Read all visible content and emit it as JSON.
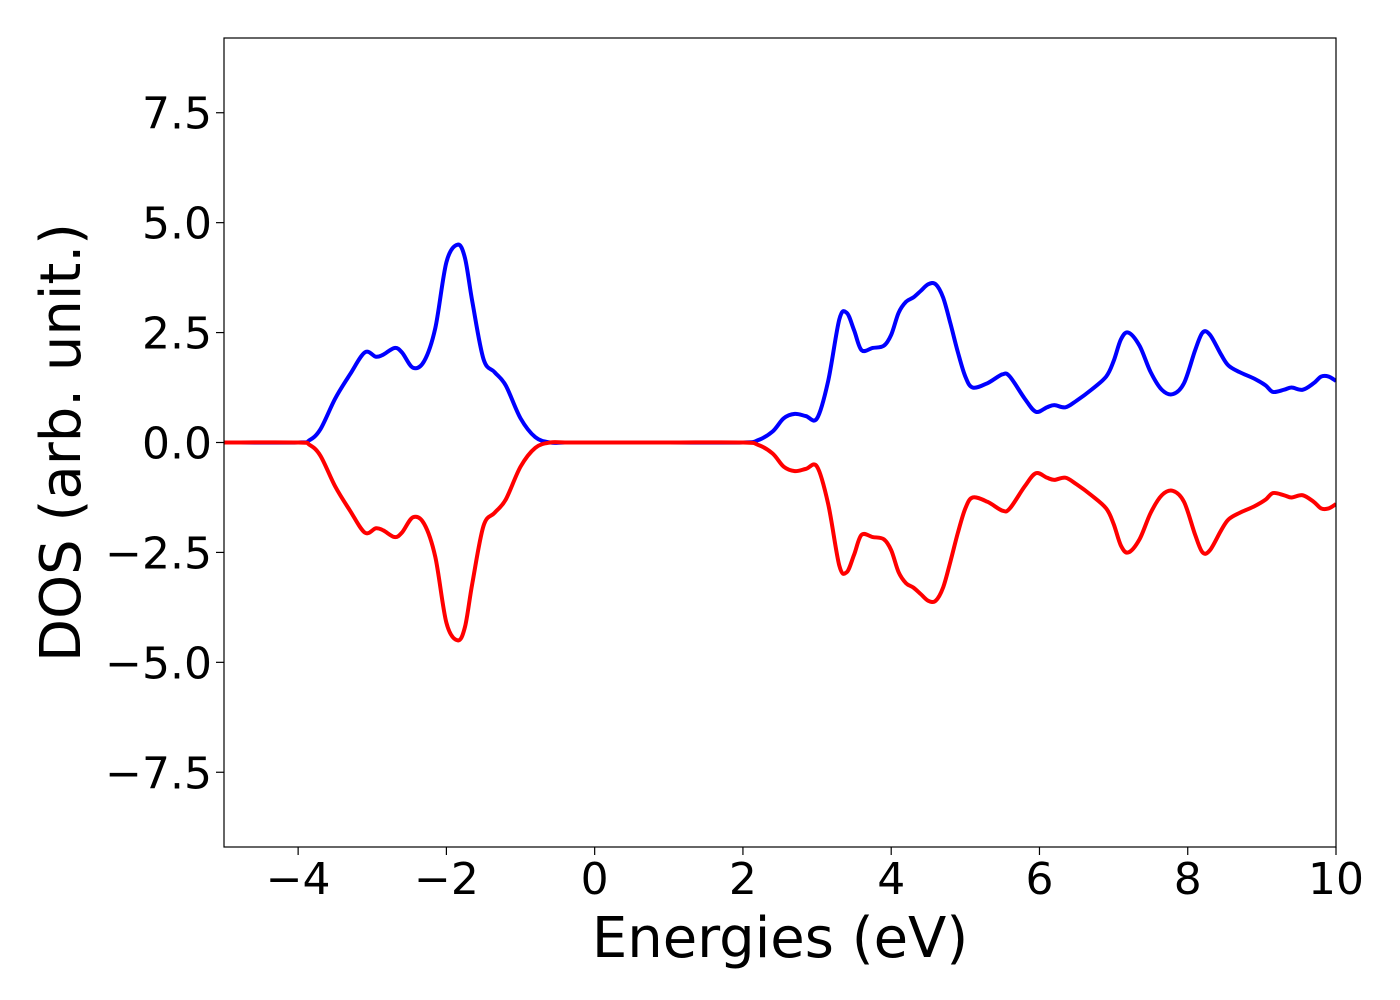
{
  "chart_data": {
    "type": "line",
    "title": "",
    "xlabel": "Energies (eV)",
    "ylabel": "DOS (arb. unit.)",
    "xlim": [
      -5,
      10
    ],
    "ylim": [
      -9.2,
      9.2
    ],
    "x_ticks": [
      -4,
      -2,
      0,
      2,
      4,
      6,
      8,
      10
    ],
    "x_tick_labels": [
      "−4",
      "−2",
      "0",
      "2",
      "4",
      "6",
      "8",
      "10"
    ],
    "y_ticks": [
      -7.5,
      -5.0,
      -2.5,
      0.0,
      2.5,
      5.0,
      7.5
    ],
    "y_tick_labels": [
      "−7.5",
      "−5.0",
      "−2.5",
      "0.0",
      "2.5",
      "5.0",
      "7.5"
    ],
    "grid": false,
    "legend": "none",
    "series": [
      {
        "color": "#0000ff",
        "x": [
          -5.0,
          -4.0,
          -3.85,
          -3.7,
          -3.5,
          -3.3,
          -3.1,
          -2.95,
          -2.85,
          -2.7,
          -2.6,
          -2.45,
          -2.3,
          -2.15,
          -2.0,
          -1.85,
          -1.75,
          -1.65,
          -1.5,
          -1.35,
          -1.2,
          -1.0,
          -0.8,
          -0.6,
          -0.4,
          0.0,
          1.0,
          2.0,
          2.2,
          2.4,
          2.55,
          2.7,
          2.85,
          3.0,
          3.15,
          3.3,
          3.4,
          3.5,
          3.6,
          3.75,
          3.9,
          4.0,
          4.1,
          4.2,
          4.3,
          4.4,
          4.5,
          4.6,
          4.7,
          4.8,
          4.9,
          5.0,
          5.1,
          5.3,
          5.5,
          5.6,
          5.8,
          5.95,
          6.1,
          6.2,
          6.35,
          6.5,
          6.7,
          6.9,
          7.0,
          7.1,
          7.2,
          7.35,
          7.5,
          7.65,
          7.8,
          7.95,
          8.1,
          8.2,
          8.3,
          8.45,
          8.55,
          8.7,
          8.9,
          9.05,
          9.15,
          9.3,
          9.4,
          9.55,
          9.7,
          9.8,
          9.9,
          10.0
        ],
        "y": [
          0.0,
          0.0,
          0.05,
          0.3,
          1.0,
          1.55,
          2.05,
          1.95,
          2.0,
          2.15,
          2.05,
          1.7,
          1.85,
          2.6,
          4.1,
          4.5,
          4.2,
          3.2,
          1.9,
          1.6,
          1.3,
          0.55,
          0.12,
          0.0,
          0.0,
          0.0,
          0.0,
          0.0,
          0.05,
          0.25,
          0.55,
          0.65,
          0.6,
          0.55,
          1.4,
          2.8,
          2.95,
          2.55,
          2.1,
          2.15,
          2.2,
          2.45,
          2.95,
          3.2,
          3.3,
          3.45,
          3.6,
          3.6,
          3.3,
          2.7,
          2.05,
          1.5,
          1.25,
          1.35,
          1.55,
          1.5,
          1.0,
          0.7,
          0.8,
          0.85,
          0.8,
          0.95,
          1.2,
          1.5,
          1.85,
          2.35,
          2.5,
          2.2,
          1.6,
          1.2,
          1.1,
          1.35,
          2.1,
          2.5,
          2.45,
          2.0,
          1.75,
          1.6,
          1.45,
          1.3,
          1.15,
          1.2,
          1.25,
          1.2,
          1.35,
          1.5,
          1.5,
          1.4
        ]
      },
      {
        "color": "#ff0000",
        "x": [
          -5.0,
          -4.0,
          -3.85,
          -3.7,
          -3.5,
          -3.3,
          -3.1,
          -2.95,
          -2.85,
          -2.7,
          -2.6,
          -2.45,
          -2.3,
          -2.15,
          -2.0,
          -1.85,
          -1.75,
          -1.65,
          -1.5,
          -1.35,
          -1.2,
          -1.0,
          -0.8,
          -0.6,
          -0.4,
          0.0,
          1.0,
          2.0,
          2.2,
          2.4,
          2.55,
          2.7,
          2.85,
          3.0,
          3.15,
          3.3,
          3.4,
          3.5,
          3.6,
          3.75,
          3.9,
          4.0,
          4.1,
          4.2,
          4.3,
          4.4,
          4.5,
          4.6,
          4.7,
          4.8,
          4.9,
          5.0,
          5.1,
          5.3,
          5.5,
          5.6,
          5.8,
          5.95,
          6.1,
          6.2,
          6.35,
          6.5,
          6.7,
          6.9,
          7.0,
          7.1,
          7.2,
          7.35,
          7.5,
          7.65,
          7.8,
          7.95,
          8.1,
          8.2,
          8.3,
          8.45,
          8.55,
          8.7,
          8.9,
          9.05,
          9.15,
          9.3,
          9.4,
          9.55,
          9.7,
          9.8,
          9.9,
          10.0
        ],
        "y": [
          0.0,
          0.0,
          -0.05,
          -0.3,
          -1.0,
          -1.55,
          -2.05,
          -1.95,
          -2.0,
          -2.15,
          -2.05,
          -1.7,
          -1.85,
          -2.6,
          -4.1,
          -4.5,
          -4.2,
          -3.2,
          -1.9,
          -1.6,
          -1.3,
          -0.55,
          -0.12,
          0.0,
          0.0,
          0.0,
          0.0,
          0.0,
          -0.05,
          -0.25,
          -0.55,
          -0.65,
          -0.6,
          -0.55,
          -1.4,
          -2.8,
          -2.95,
          -2.55,
          -2.1,
          -2.15,
          -2.2,
          -2.45,
          -2.95,
          -3.2,
          -3.3,
          -3.45,
          -3.6,
          -3.6,
          -3.3,
          -2.7,
          -2.05,
          -1.5,
          -1.25,
          -1.35,
          -1.55,
          -1.5,
          -1.0,
          -0.7,
          -0.8,
          -0.85,
          -0.8,
          -0.95,
          -1.2,
          -1.5,
          -1.85,
          -2.35,
          -2.5,
          -2.2,
          -1.6,
          -1.2,
          -1.1,
          -1.35,
          -2.1,
          -2.5,
          -2.45,
          -2.0,
          -1.75,
          -1.6,
          -1.45,
          -1.3,
          -1.15,
          -1.2,
          -1.25,
          -1.2,
          -1.35,
          -1.5,
          -1.5,
          -1.4
        ]
      }
    ]
  }
}
